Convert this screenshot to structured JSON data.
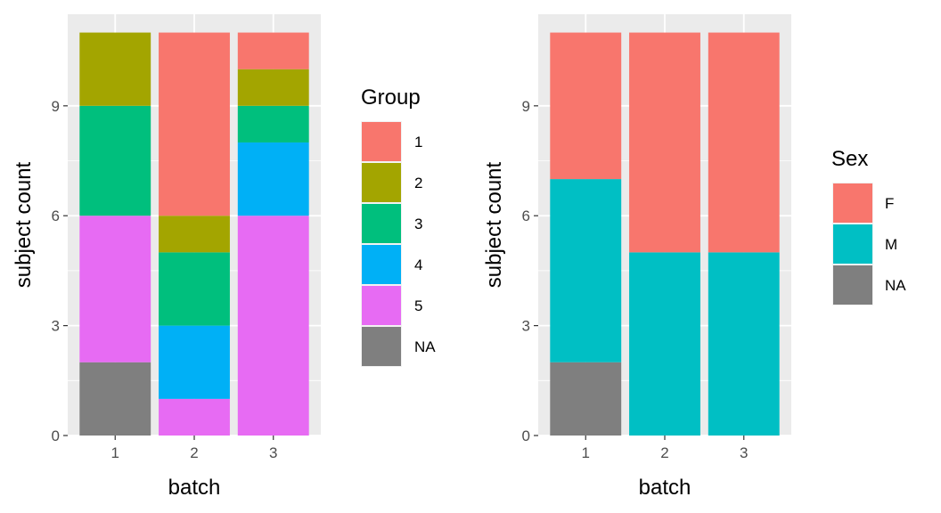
{
  "chart_data": [
    {
      "type": "bar",
      "stacked": true,
      "xlabel": "batch",
      "ylabel": "subject count",
      "categories": [
        "1",
        "2",
        "3"
      ],
      "ylim": [
        0,
        11.5
      ],
      "yticks": [
        0,
        3,
        6,
        9
      ],
      "legend": {
        "title": "Group",
        "placement": "right"
      },
      "series": [
        {
          "name": "1",
          "color": "#F8766D",
          "values": [
            0,
            5,
            1
          ]
        },
        {
          "name": "2",
          "color": "#A3A500",
          "values": [
            2,
            1,
            1
          ]
        },
        {
          "name": "3",
          "color": "#00BF7D",
          "values": [
            3,
            2,
            1
          ]
        },
        {
          "name": "4",
          "color": "#00B0F6",
          "values": [
            0,
            2,
            2
          ]
        },
        {
          "name": "5",
          "color": "#E76BF3",
          "values": [
            4,
            1,
            6
          ]
        },
        {
          "name": "NA",
          "color": "#7F7F7F",
          "values": [
            2,
            0,
            0
          ]
        }
      ]
    },
    {
      "type": "bar",
      "stacked": true,
      "xlabel": "batch",
      "ylabel": "subject count",
      "categories": [
        "1",
        "2",
        "3"
      ],
      "ylim": [
        0,
        11.5
      ],
      "yticks": [
        0,
        3,
        6,
        9
      ],
      "legend": {
        "title": "Sex",
        "placement": "right"
      },
      "series": [
        {
          "name": "F",
          "color": "#F8766D",
          "values": [
            4,
            6,
            6
          ]
        },
        {
          "name": "M",
          "color": "#00BFC4",
          "values": [
            5,
            5,
            5
          ]
        },
        {
          "name": "NA",
          "color": "#7F7F7F",
          "values": [
            2,
            0,
            0
          ]
        }
      ]
    }
  ]
}
